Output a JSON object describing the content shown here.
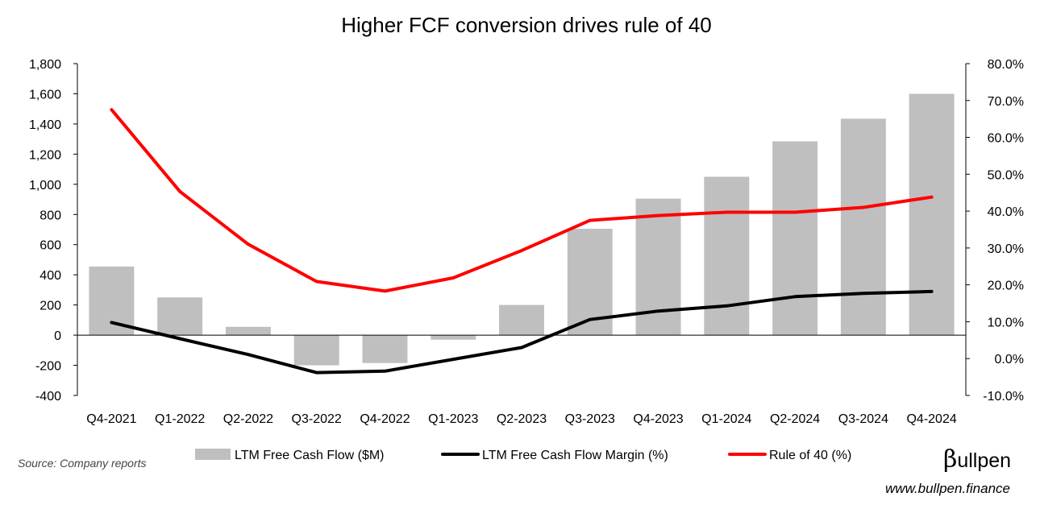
{
  "chart_data": {
    "type": "bar",
    "title": "Higher FCF conversion drives rule of 40",
    "categories": [
      "Q4-2021",
      "Q1-2022",
      "Q2-2022",
      "Q3-2022",
      "Q4-2022",
      "Q1-2023",
      "Q2-2023",
      "Q3-2023",
      "Q4-2023",
      "Q1-2024",
      "Q2-2024",
      "Q3-2024",
      "Q4-2024"
    ],
    "y_left": {
      "min": -400,
      "max": 1800,
      "step": 200,
      "tick_labels": [
        "-400",
        "-200",
        "0",
        "200",
        "400",
        "600",
        "800",
        "1,000",
        "1,200",
        "1,400",
        "1,600",
        "1,800"
      ]
    },
    "y_right": {
      "min": -10,
      "max": 80,
      "step": 10,
      "tick_labels": [
        "-10.0%",
        "0.0%",
        "10.0%",
        "20.0%",
        "30.0%",
        "40.0%",
        "50.0%",
        "60.0%",
        "70.0%",
        "80.0%"
      ]
    },
    "series": [
      {
        "name": "LTM Free Cash Flow ($M)",
        "type": "bar",
        "axis": "left",
        "color": "#bfbfbf",
        "values": [
          455,
          250,
          55,
          -200,
          -185,
          -30,
          200,
          705,
          905,
          1050,
          1285,
          1435,
          1600
        ]
      },
      {
        "name": "LTM Free Cash Flow Margin (%)",
        "type": "line",
        "axis": "right",
        "color": "#000000",
        "values": [
          9.8,
          5.4,
          1.1,
          -3.8,
          -3.4,
          -0.2,
          3.0,
          10.6,
          12.9,
          14.3,
          16.8,
          17.7,
          18.2
        ]
      },
      {
        "name": "Rule of 40 (%)",
        "type": "line",
        "axis": "right",
        "color": "#ff0000",
        "values": [
          67.5,
          45.3,
          31.0,
          20.9,
          18.3,
          21.9,
          29.3,
          37.5,
          38.8,
          39.7,
          39.7,
          41.0,
          43.8
        ]
      }
    ],
    "legend_position": "bottom",
    "grid": false
  },
  "footer": {
    "source": "Source: Company reports",
    "brand_b": "β",
    "brand_rest": "ullpen",
    "website": "www.bullpen.finance"
  }
}
